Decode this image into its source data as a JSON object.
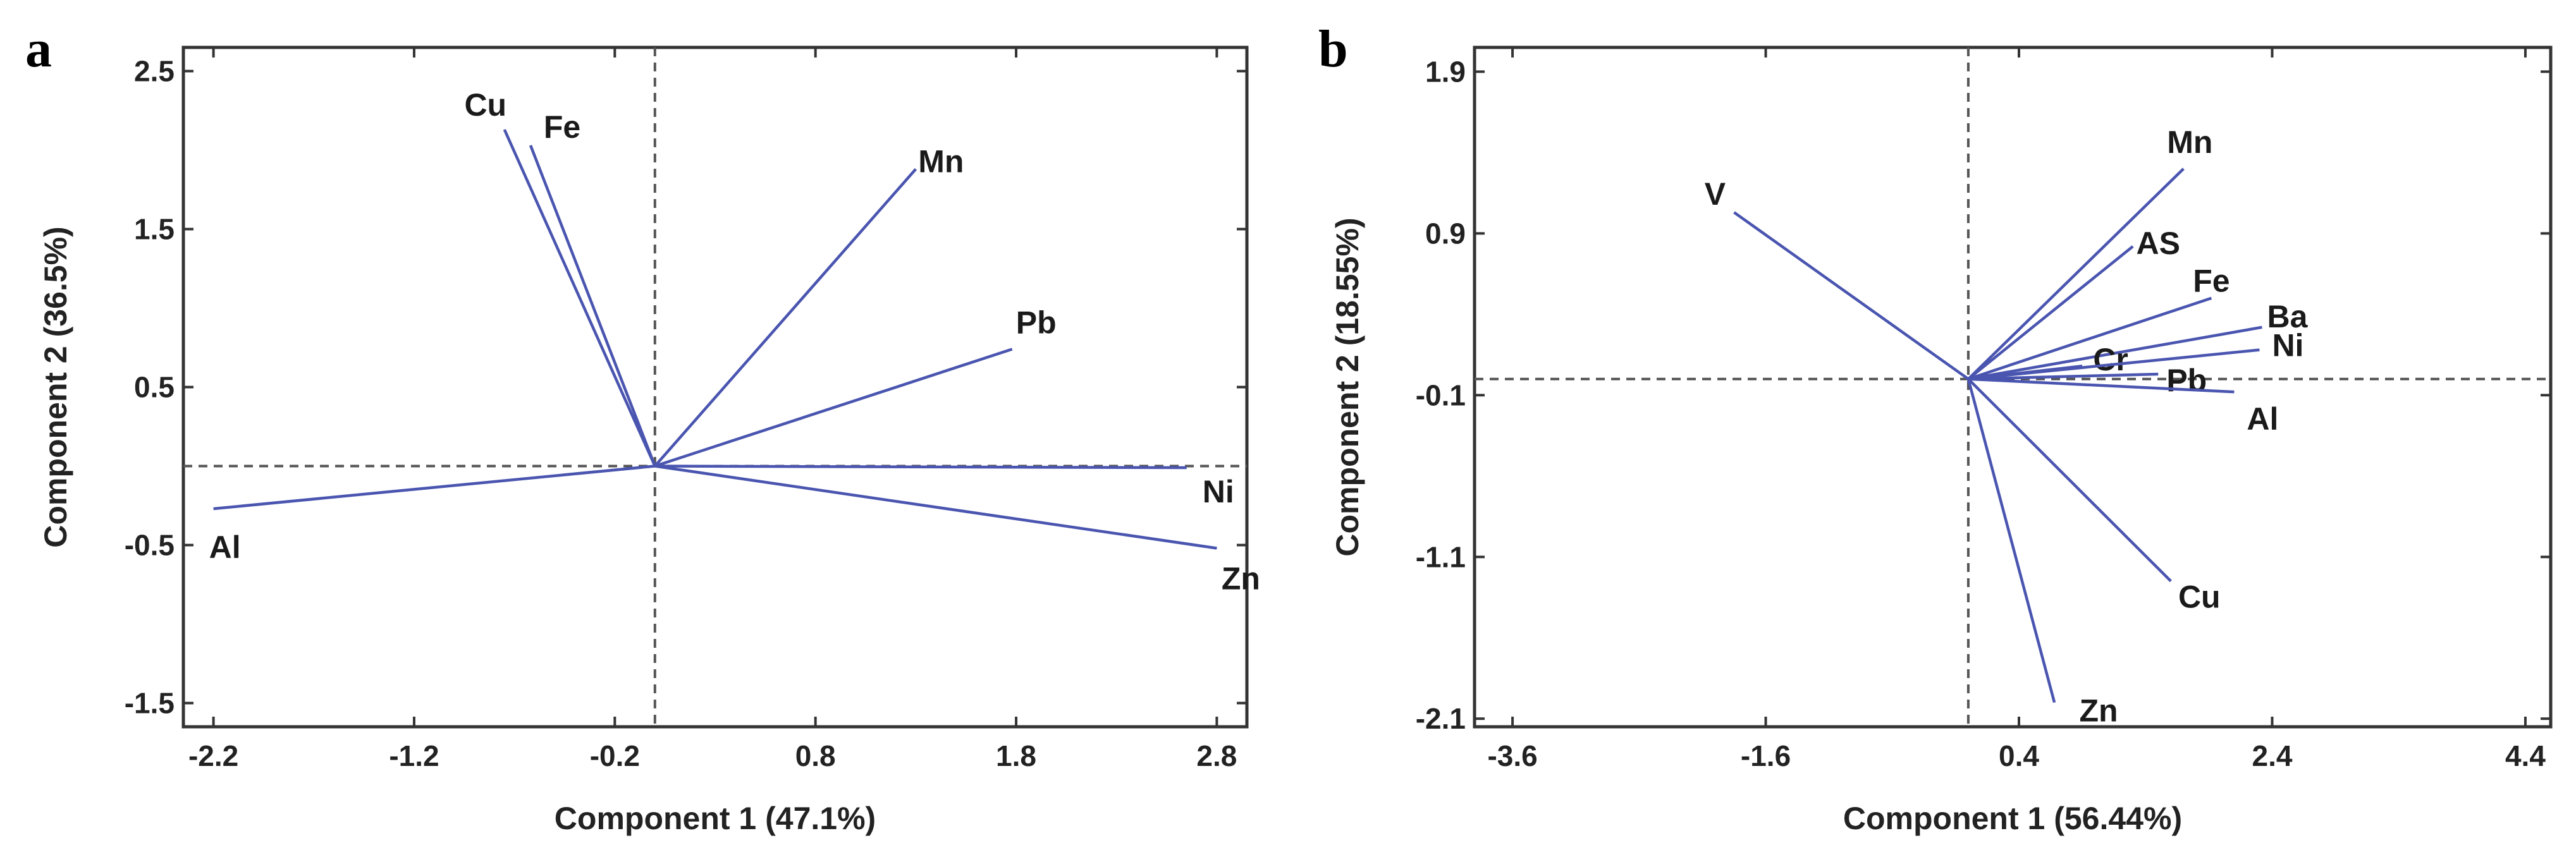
{
  "chart_data": [
    {
      "type": "biplot",
      "panel_label": "a",
      "xlabel": "Component 1 (47.1%)",
      "ylabel": "Component 2 (36.5%)",
      "xlim": [
        -2.35,
        2.95
      ],
      "ylim": [
        -1.65,
        2.65
      ],
      "x_ticks": [
        -2.2,
        -1.2,
        -0.2,
        0.8,
        1.8,
        2.8
      ],
      "x_tick_labels": [
        "-2.2",
        "-1.2",
        "-0.2",
        "0.8",
        "1.8",
        "2.8"
      ],
      "y_ticks": [
        -1.5,
        -0.5,
        0.5,
        1.5,
        2.5
      ],
      "y_tick_labels": [
        "-1.5",
        "-0.5",
        "0.5",
        "1.5",
        "2.5"
      ],
      "origin": [
        0.0,
        0.0
      ],
      "vectors": [
        {
          "name": "Cu",
          "x": -0.75,
          "y": 2.13
        },
        {
          "name": "Fe",
          "x": -0.62,
          "y": 2.03
        },
        {
          "name": "Mn",
          "x": 1.3,
          "y": 1.88
        },
        {
          "name": "Pb",
          "x": 1.78,
          "y": 0.74
        },
        {
          "name": "Ni",
          "x": 2.65,
          "y": -0.01
        },
        {
          "name": "Zn",
          "x": 2.8,
          "y": -0.52
        },
        {
          "name": "Al",
          "x": -2.2,
          "y": -0.27
        }
      ]
    },
    {
      "type": "biplot",
      "panel_label": "b",
      "xlabel": "Component 1 (56.44%)",
      "ylabel": "Component 2 (18.55%)",
      "xlim": [
        -3.9,
        4.6
      ],
      "ylim": [
        -2.15,
        2.05
      ],
      "x_ticks": [
        -3.6,
        -1.6,
        0.4,
        2.4,
        4.4
      ],
      "x_tick_labels": [
        "-3.6",
        "-1.6",
        "0.4",
        "2.4",
        "4.4"
      ],
      "y_ticks": [
        -2.1,
        -1.1,
        -0.1,
        0.9,
        1.9
      ],
      "y_tick_labels": [
        "-2.1",
        "-1.1",
        "-0.1",
        "0.9",
        "1.9"
      ],
      "origin": [
        0.0,
        0.0
      ],
      "vectors": [
        {
          "name": "V",
          "x": -1.85,
          "y": 1.03
        },
        {
          "name": "Mn",
          "x": 1.7,
          "y": 1.3
        },
        {
          "name": "AS",
          "x": 1.3,
          "y": 0.82
        },
        {
          "name": "Fe",
          "x": 1.92,
          "y": 0.5
        },
        {
          "name": "Ba",
          "x": 2.32,
          "y": 0.32
        },
        {
          "name": "Cr",
          "x": 0.9,
          "y": 0.08
        },
        {
          "name": "Pb",
          "x": 1.5,
          "y": 0.03
        },
        {
          "name": "Ni",
          "x": 2.3,
          "y": 0.18
        },
        {
          "name": "Al",
          "x": 2.1,
          "y": -0.08
        },
        {
          "name": "Cu",
          "x": 1.6,
          "y": -1.25
        },
        {
          "name": "Zn",
          "x": 0.68,
          "y": -2.0
        }
      ]
    }
  ]
}
